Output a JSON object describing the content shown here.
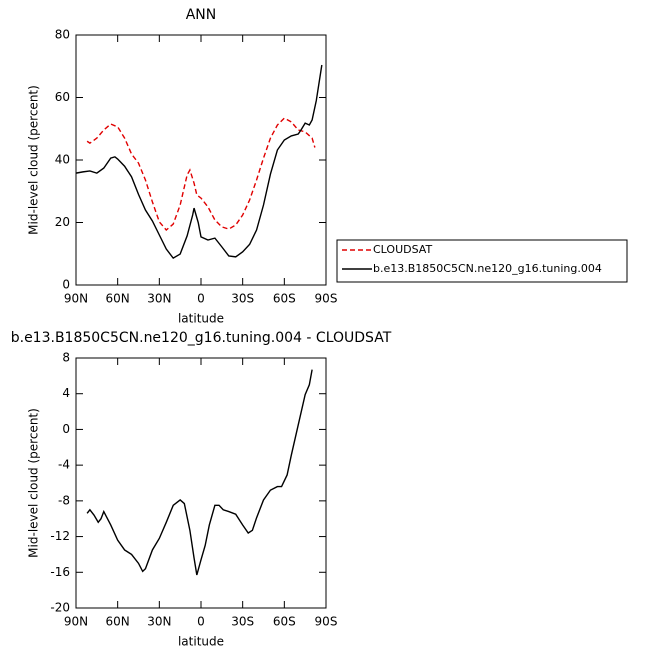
{
  "chart_data": [
    {
      "type": "line",
      "title": "ANN",
      "xlabel": "latitude",
      "ylabel": "Mid-level cloud (percent)",
      "xlim": [
        90,
        -90
      ],
      "xticks": [
        {
          "value": 90,
          "label": "90N"
        },
        {
          "value": 60,
          "label": "60N"
        },
        {
          "value": 30,
          "label": "30N"
        },
        0,
        {
          "value": -30,
          "label": "30S"
        },
        {
          "value": -60,
          "label": "60S"
        },
        {
          "value": -90,
          "label": "90S"
        }
      ],
      "ylim": [
        0,
        80
      ],
      "yticks": [
        0,
        20,
        40,
        60,
        80
      ],
      "legend_position": "right",
      "series": [
        {
          "name": "CLOUDSAT",
          "color": "#e00000",
          "line_style": "dashed",
          "x": [
            82,
            80,
            75,
            70,
            65,
            60,
            55,
            50,
            45,
            40,
            35,
            30,
            25,
            20,
            15,
            10,
            8,
            5,
            3,
            0,
            -5,
            -10,
            -15,
            -20,
            -25,
            -30,
            -35,
            -40,
            -45,
            -50,
            -55,
            -60,
            -65,
            -70,
            -75,
            -80,
            -82
          ],
          "values": [
            46,
            45.4,
            47,
            49.6,
            51.5,
            50.6,
            47,
            41.9,
            39,
            33.6,
            26.6,
            20.2,
            17.6,
            19.5,
            25.6,
            35.2,
            36.8,
            32.6,
            28.8,
            27.8,
            25,
            20.8,
            18.6,
            17.9,
            19.2,
            22.4,
            27.2,
            33.6,
            40.6,
            47,
            51.2,
            53.4,
            52.2,
            49.6,
            49,
            47,
            44
          ]
        },
        {
          "name": "b.e13.B1850C5CN.ne120_g16.tuning.004",
          "color": "#000000",
          "line_style": "solid",
          "x": [
            90,
            85,
            80,
            75,
            70,
            65,
            62,
            60,
            55,
            50,
            45,
            40,
            35,
            30,
            25,
            20,
            15,
            10,
            6,
            5,
            2,
            0,
            -5,
            -10,
            -15,
            -20,
            -25,
            -30,
            -35,
            -40,
            -45,
            -50,
            -55,
            -60,
            -65,
            -70,
            -72,
            -75,
            -78,
            -80,
            -83,
            -87
          ],
          "values": [
            35.8,
            36.2,
            36.5,
            35.8,
            37.4,
            40.6,
            41,
            40.3,
            38,
            34.6,
            29,
            24,
            20.5,
            16,
            11.5,
            8.6,
            9.9,
            15.7,
            22.4,
            24.6,
            20,
            15.4,
            14.4,
            15,
            12.2,
            9.3,
            9,
            10.6,
            13,
            17.6,
            25.6,
            35.5,
            43.2,
            46.4,
            47.7,
            48.3,
            49.6,
            51.8,
            51.2,
            52.8,
            59,
            70.4
          ]
        }
      ]
    },
    {
      "type": "line",
      "title": "b.e13.B1850C5CN.ne120_g16.tuning.004 - CLOUDSAT",
      "xlabel": "latitude",
      "ylabel": "Mid-level cloud (percent)",
      "xlim": [
        90,
        -90
      ],
      "xticks": [
        {
          "value": 90,
          "label": "90N"
        },
        {
          "value": 60,
          "label": "60N"
        },
        {
          "value": 30,
          "label": "30N"
        },
        0,
        {
          "value": -30,
          "label": "30S"
        },
        {
          "value": -60,
          "label": "60S"
        },
        {
          "value": -90,
          "label": "90S"
        }
      ],
      "ylim": [
        -20,
        8
      ],
      "yticks": [
        -20,
        -16,
        -12,
        -8,
        -4,
        0,
        4,
        8
      ],
      "series": [
        {
          "color": "#000000",
          "line_style": "solid",
          "x": [
            82,
            80,
            77,
            74,
            72,
            70,
            68,
            65,
            60,
            55,
            50,
            45,
            42,
            40,
            35,
            30,
            25,
            20,
            15,
            12,
            8,
            5,
            3,
            0,
            -3,
            -6,
            -10,
            -13,
            -16,
            -20,
            -25,
            -30,
            -34,
            -37,
            -40,
            -45,
            -50,
            -55,
            -58,
            -62,
            -65,
            -70,
            -75,
            -78,
            -80
          ],
          "values": [
            -9.4,
            -9,
            -9.6,
            -10.4,
            -10,
            -9.2,
            -9.8,
            -10.7,
            -12.4,
            -13.5,
            -14,
            -15,
            -15.9,
            -15.6,
            -13.5,
            -12.2,
            -10.4,
            -8.5,
            -7.9,
            -8.3,
            -11.3,
            -14.4,
            -16.3,
            -14.6,
            -13,
            -10.7,
            -8.5,
            -8.5,
            -9,
            -9.2,
            -9.5,
            -10.7,
            -11.6,
            -11.3,
            -9.9,
            -7.9,
            -6.8,
            -6.4,
            -6.4,
            -5.1,
            -2.9,
            0.5,
            3.9,
            5,
            6.7
          ]
        }
      ]
    }
  ]
}
